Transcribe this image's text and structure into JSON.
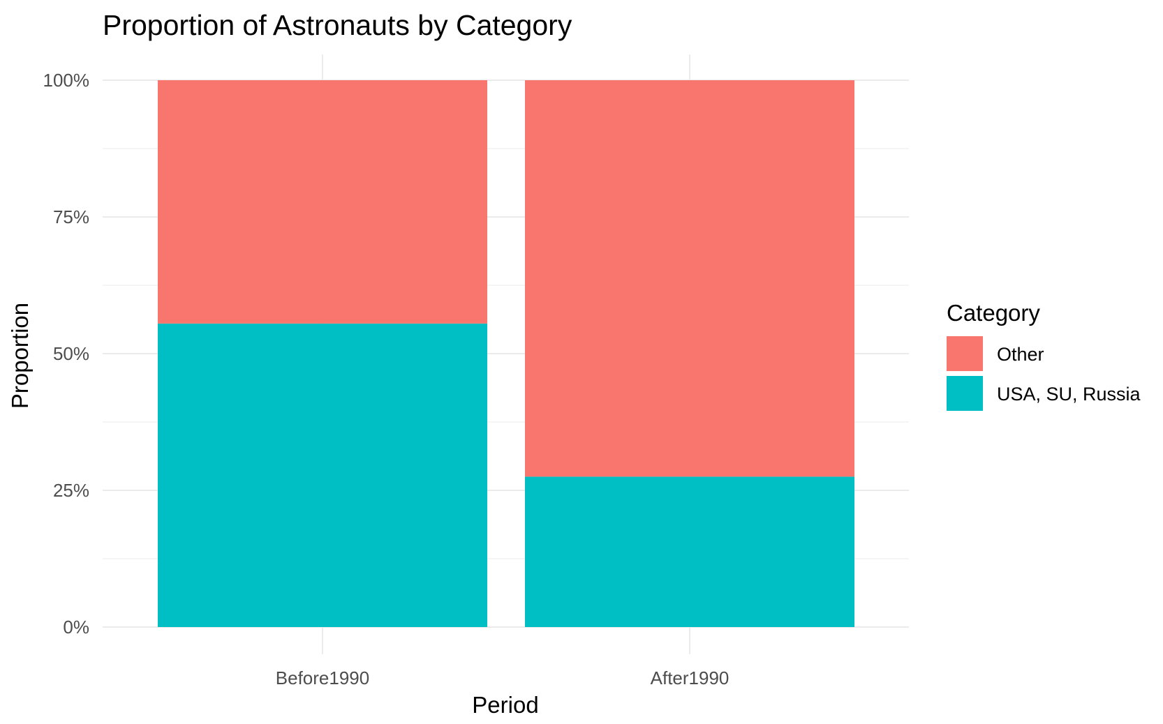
{
  "chart_data": {
    "type": "bar",
    "stacked": true,
    "title": "Proportion of Astronauts by Category",
    "xlabel": "Period",
    "ylabel": "Proportion",
    "categories": [
      "Before1990",
      "After1990"
    ],
    "ylim": [
      0,
      1
    ],
    "yticks": [
      0,
      0.25,
      0.5,
      0.75,
      1
    ],
    "ytick_labels": [
      "0%",
      "25%",
      "50%",
      "75%",
      "100%"
    ],
    "grid": true,
    "legend": {
      "title": "Category",
      "position": "right"
    },
    "series": [
      {
        "name": "USA, SU, Russia",
        "color": "#00BFC4",
        "values": [
          0.555,
          0.275
        ]
      },
      {
        "name": "Other",
        "color": "#F8766D",
        "values": [
          0.445,
          0.725
        ]
      }
    ],
    "legend_order": [
      "Other",
      "USA, SU, Russia"
    ]
  }
}
